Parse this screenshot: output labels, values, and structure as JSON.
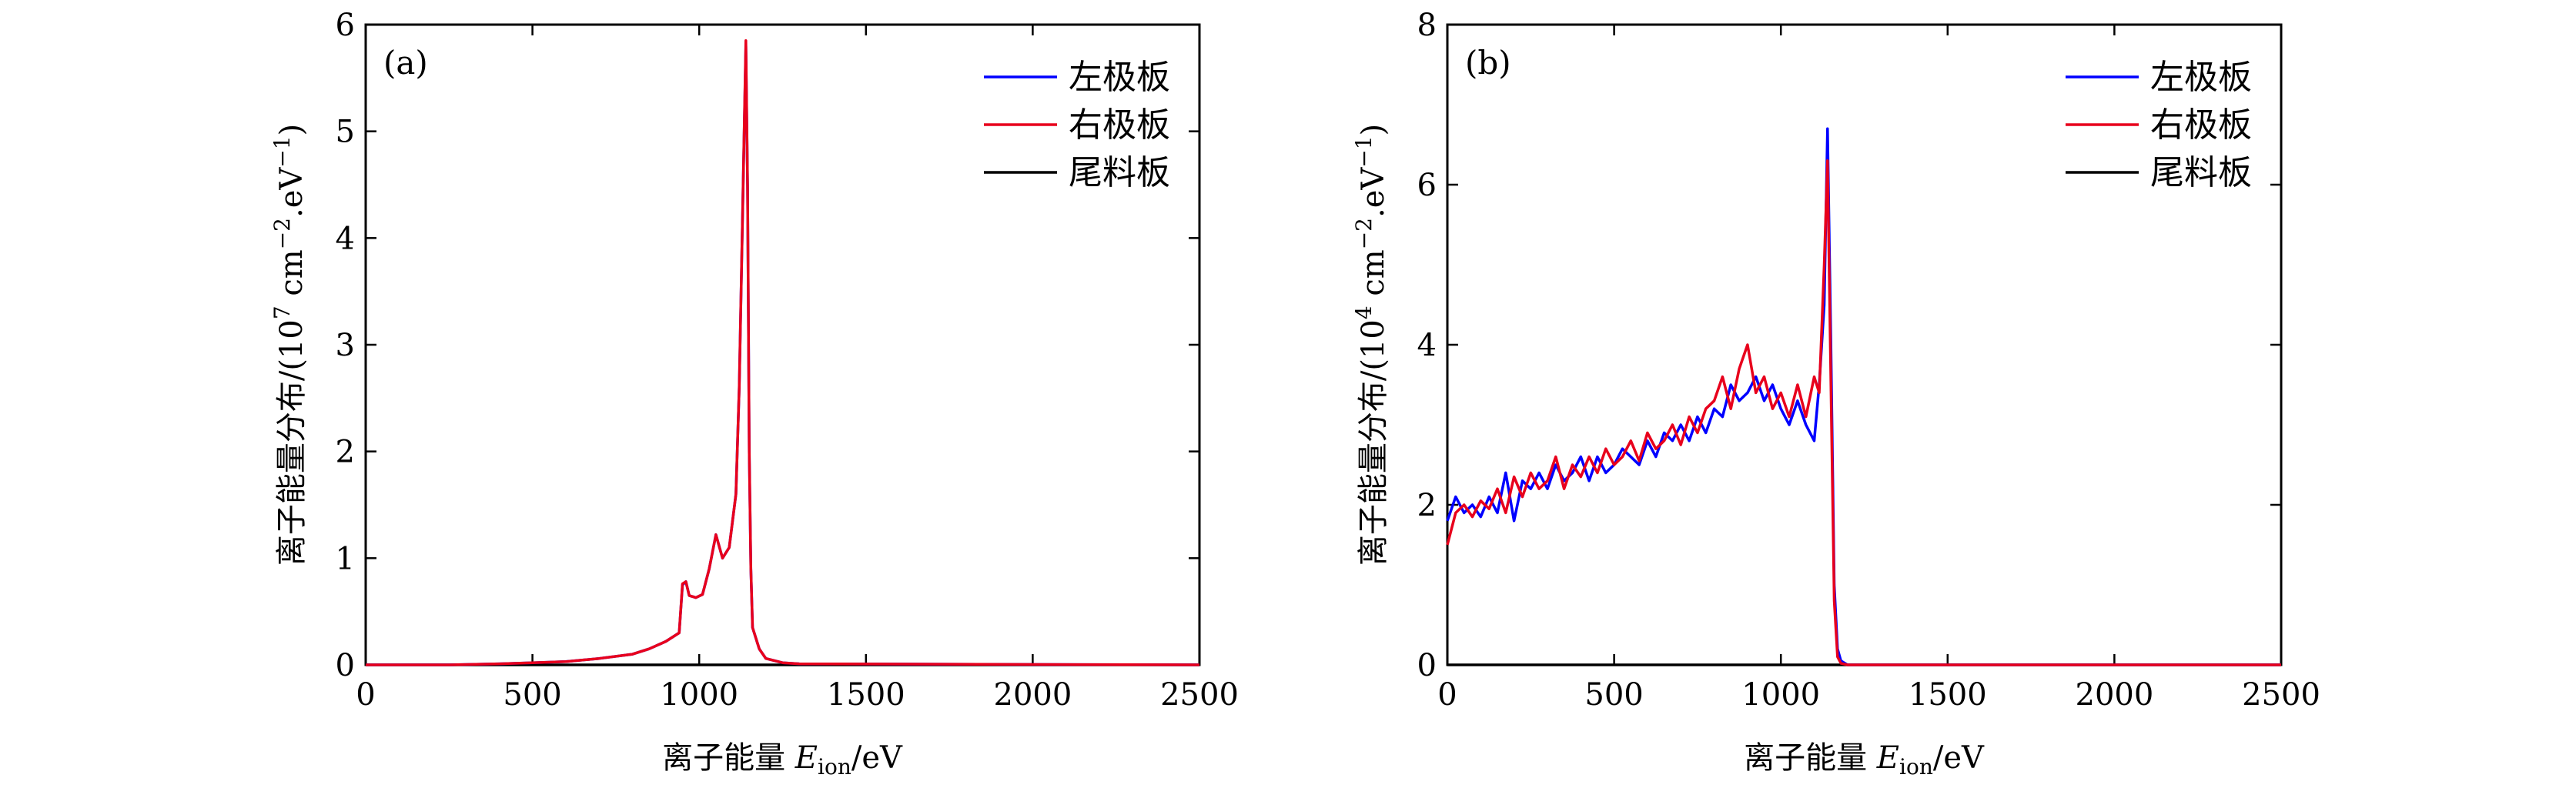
{
  "chart_data": [
    {
      "type": "line",
      "panel_label": "(a)",
      "xlabel": "离子能量 E_ion/eV",
      "xlabel_main": "离子能量 ",
      "xlabel_var": "E",
      "xlabel_sub": "ion",
      "xlabel_unit": "/eV",
      "ylabel_prefix": "离子能量分布/(10",
      "ylabel_exp": "7",
      "ylabel_mid": " cm",
      "ylabel_exp2": "−2",
      "ylabel_mid2": ".eV",
      "ylabel_exp3": "−1",
      "ylabel_end": ")",
      "xlim": [
        0,
        2500
      ],
      "ylim": [
        0,
        6
      ],
      "xticks": [
        0,
        500,
        1000,
        1500,
        2000,
        2500
      ],
      "yticks": [
        0,
        1,
        2,
        3,
        4,
        5,
        6
      ],
      "xtick_labels": [
        "0",
        "500",
        "1000",
        "1500",
        "2000",
        "2500"
      ],
      "ytick_labels": [
        "0",
        "1",
        "2",
        "3",
        "4",
        "5",
        "6"
      ],
      "legend": {
        "position": "top-right",
        "entries": [
          "左极板",
          "右极板",
          "尾料板"
        ]
      },
      "series": [
        {
          "name": "左极板",
          "color": "#0000ff",
          "x": [
            0,
            250,
            400,
            500,
            600,
            700,
            800,
            850,
            900,
            940,
            950,
            960,
            970,
            990,
            1010,
            1030,
            1050,
            1070,
            1090,
            1110,
            1120,
            1130,
            1140,
            1145,
            1150,
            1155,
            1160,
            1180,
            1200,
            1250,
            1300,
            2500
          ],
          "y": [
            0,
            0,
            0.01,
            0.02,
            0.03,
            0.06,
            0.1,
            0.15,
            0.22,
            0.3,
            0.75,
            0.78,
            0.65,
            0.63,
            0.66,
            0.9,
            1.22,
            1.0,
            1.1,
            1.6,
            2.6,
            4.2,
            5.8,
            4.5,
            2.0,
            0.9,
            0.35,
            0.15,
            0.06,
            0.02,
            0.01,
            0
          ]
        },
        {
          "name": "右极板",
          "color": "#e8001c",
          "x": [
            0,
            250,
            400,
            500,
            600,
            700,
            800,
            850,
            900,
            940,
            950,
            960,
            970,
            990,
            1010,
            1030,
            1050,
            1070,
            1090,
            1110,
            1120,
            1130,
            1140,
            1145,
            1150,
            1155,
            1160,
            1180,
            1200,
            1250,
            1300,
            2500
          ],
          "y": [
            0,
            0,
            0.01,
            0.02,
            0.03,
            0.06,
            0.1,
            0.15,
            0.22,
            0.3,
            0.76,
            0.78,
            0.65,
            0.63,
            0.66,
            0.9,
            1.22,
            1.0,
            1.1,
            1.6,
            2.6,
            4.2,
            5.85,
            4.5,
            2.0,
            0.9,
            0.35,
            0.15,
            0.06,
            0.02,
            0.01,
            0
          ]
        },
        {
          "name": "尾料板",
          "color": "#000000",
          "x": [
            0,
            2500
          ],
          "y": [
            0,
            0
          ]
        }
      ]
    },
    {
      "type": "line",
      "panel_label": "(b)",
      "xlabel": "离子能量 E_ion/eV",
      "xlabel_main": "离子能量 ",
      "xlabel_var": "E",
      "xlabel_sub": "ion",
      "xlabel_unit": "/eV",
      "ylabel_prefix": "离子能量分布/(10",
      "ylabel_exp": "4",
      "ylabel_mid": " cm",
      "ylabel_exp2": "−2",
      "ylabel_mid2": ".eV",
      "ylabel_exp3": "−1",
      "ylabel_end": ")",
      "xlim": [
        0,
        2500
      ],
      "ylim": [
        0,
        8
      ],
      "xticks": [
        0,
        500,
        1000,
        1500,
        2000,
        2500
      ],
      "yticks": [
        0,
        2,
        4,
        6,
        8
      ],
      "xtick_labels": [
        "0",
        "500",
        "1000",
        "1500",
        "2000",
        "2500"
      ],
      "ytick_labels": [
        "0",
        "2",
        "4",
        "6",
        "8"
      ],
      "legend": {
        "position": "top-right",
        "entries": [
          "左极板",
          "右极板",
          "尾料板"
        ]
      },
      "series": [
        {
          "name": "左极板",
          "color": "#0000ff",
          "x": [
            0,
            25,
            50,
            75,
            100,
            125,
            150,
            175,
            200,
            225,
            250,
            275,
            300,
            325,
            350,
            375,
            400,
            425,
            450,
            475,
            500,
            525,
            550,
            575,
            600,
            625,
            650,
            675,
            700,
            725,
            750,
            775,
            800,
            825,
            850,
            875,
            900,
            925,
            950,
            975,
            1000,
            1025,
            1050,
            1075,
            1100,
            1115,
            1130,
            1140,
            1150,
            1160,
            1170,
            1180,
            1200,
            1300,
            2500
          ],
          "y": [
            1.8,
            2.1,
            1.9,
            2.0,
            1.85,
            2.1,
            1.9,
            2.4,
            1.8,
            2.3,
            2.2,
            2.4,
            2.2,
            2.5,
            2.3,
            2.4,
            2.6,
            2.3,
            2.6,
            2.4,
            2.5,
            2.7,
            2.6,
            2.5,
            2.8,
            2.6,
            2.9,
            2.8,
            3.0,
            2.8,
            3.1,
            2.9,
            3.2,
            3.1,
            3.5,
            3.3,
            3.4,
            3.6,
            3.3,
            3.5,
            3.2,
            3.0,
            3.3,
            3.0,
            2.8,
            3.5,
            4.5,
            6.7,
            4.0,
            1.0,
            0.2,
            0.05,
            0,
            0,
            0
          ]
        },
        {
          "name": "右极板",
          "color": "#e8001c",
          "x": [
            0,
            25,
            50,
            75,
            100,
            125,
            150,
            175,
            200,
            225,
            250,
            275,
            300,
            325,
            350,
            375,
            400,
            425,
            450,
            475,
            500,
            525,
            550,
            575,
            600,
            625,
            650,
            675,
            700,
            725,
            750,
            775,
            800,
            825,
            850,
            875,
            900,
            925,
            950,
            975,
            1000,
            1025,
            1050,
            1075,
            1100,
            1115,
            1130,
            1140,
            1150,
            1160,
            1170,
            1180,
            1200,
            1300,
            2500
          ],
          "y": [
            1.5,
            1.9,
            2.0,
            1.85,
            2.05,
            1.95,
            2.2,
            1.9,
            2.35,
            2.1,
            2.4,
            2.2,
            2.3,
            2.6,
            2.2,
            2.5,
            2.35,
            2.6,
            2.4,
            2.7,
            2.5,
            2.6,
            2.8,
            2.55,
            2.9,
            2.7,
            2.8,
            3.0,
            2.75,
            3.1,
            2.9,
            3.2,
            3.3,
            3.6,
            3.2,
            3.7,
            4.0,
            3.4,
            3.6,
            3.2,
            3.4,
            3.1,
            3.5,
            3.1,
            3.6,
            3.4,
            5.0,
            6.3,
            3.5,
            0.8,
            0.1,
            0.02,
            0,
            0,
            0
          ]
        },
        {
          "name": "尾料板",
          "color": "#000000",
          "x": [
            0,
            2500
          ],
          "y": [
            0,
            0
          ]
        }
      ]
    }
  ]
}
